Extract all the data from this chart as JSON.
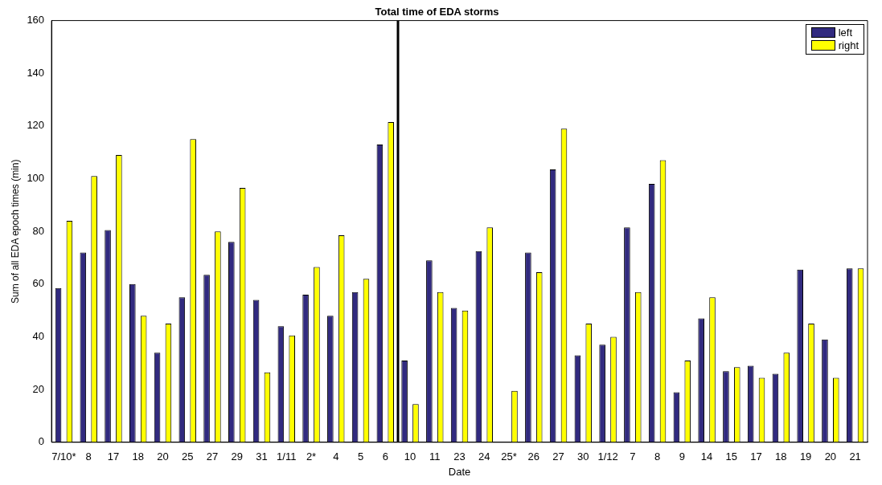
{
  "chart_data": {
    "type": "bar",
    "title": "Total time of EDA storms",
    "xlabel": "Date",
    "ylabel": "Sum of all EDA epoch times (min)",
    "categories": [
      "7/10*",
      "8",
      "17",
      "18",
      "20",
      "25",
      "27",
      "29",
      "31",
      "1/11",
      "2*",
      "4",
      "5",
      "6",
      "10",
      "11",
      "23",
      "24",
      "25*",
      "26",
      "27",
      "30",
      "1/12",
      "7",
      "8",
      "9",
      "14",
      "15",
      "17",
      "18",
      "19",
      "20",
      "21"
    ],
    "series": [
      {
        "name": "left",
        "color": "#312a7f",
        "values": [
          58.5,
          72,
          80.5,
          60,
          34,
          55,
          63.5,
          76,
          54,
          44,
          56,
          48,
          57,
          113,
          31,
          69,
          51,
          72.5,
          0,
          72,
          103.5,
          33,
          37,
          81.5,
          98,
          19,
          47,
          27,
          29,
          26,
          65.5,
          39,
          66
        ]
      },
      {
        "name": "right",
        "color": "#ffff00",
        "values": [
          84,
          101,
          109,
          48,
          45,
          115,
          80,
          96.5,
          26.5,
          40.5,
          66.5,
          78.5,
          62,
          121.5,
          14.5,
          57,
          50,
          81.5,
          19.5,
          64.5,
          119,
          45,
          40,
          57,
          107,
          31,
          55,
          28.5,
          24.5,
          34,
          45,
          24.5,
          66
        ]
      }
    ],
    "ylim": [
      0,
      160
    ],
    "yticks": [
      0,
      20,
      40,
      60,
      80,
      100,
      120,
      140,
      160
    ],
    "legend": "top right"
  }
}
